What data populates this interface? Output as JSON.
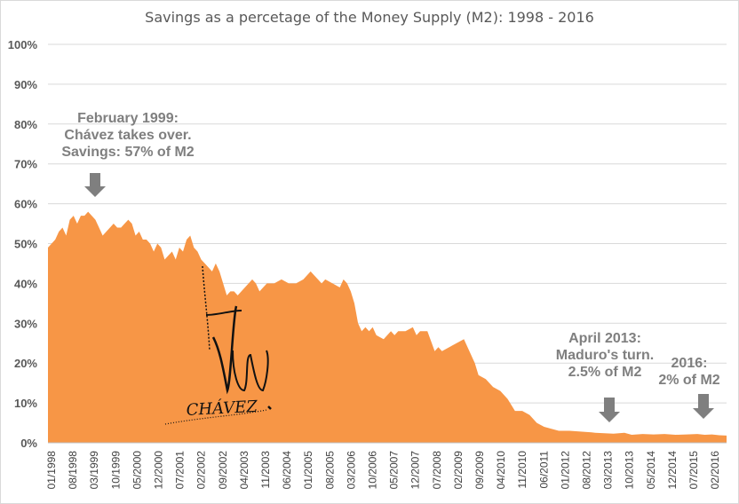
{
  "chart_data": {
    "type": "area",
    "title": "Savings as a percetage of the Money Supply (M2): 1998 - 2016",
    "xlabel": "",
    "ylabel": "",
    "ylim": [
      0,
      100
    ],
    "yticks": [
      "0%",
      "10%",
      "20%",
      "30%",
      "40%",
      "50%",
      "60%",
      "70%",
      "80%",
      "90%",
      "100%"
    ],
    "grid": true,
    "legend": "none",
    "fill_color": "#f79646",
    "grid_color": "#d9d9d9",
    "x_tick_labels": [
      "01/1998",
      "08/1998",
      "03/1999",
      "10/1999",
      "05/2000",
      "12/2000",
      "07/2001",
      "02/2002",
      "09/2002",
      "04/2003",
      "11/2003",
      "06/2004",
      "01/2005",
      "08/2005",
      "03/2006",
      "10/2006",
      "05/2007",
      "12/2007",
      "07/2008",
      "02/2009",
      "09/2009",
      "04/2010",
      "11/2010",
      "06/2011",
      "01/2012",
      "08/2012",
      "03/2013",
      "10/2013",
      "05/2014",
      "12/2014",
      "07/2015",
      "02/2016"
    ],
    "series": [
      {
        "name": "",
        "x": [
          1998.0,
          1998.1,
          1998.2,
          1998.3,
          1998.4,
          1998.5,
          1998.6,
          1998.7,
          1998.8,
          1998.9,
          1999.0,
          1999.1,
          1999.2,
          1999.3,
          1999.4,
          1999.5,
          1999.6,
          1999.7,
          1999.8,
          1999.9,
          2000.0,
          2000.1,
          2000.2,
          2000.3,
          2000.4,
          2000.5,
          2000.6,
          2000.7,
          2000.8,
          2000.9,
          2001.0,
          2001.1,
          2001.2,
          2001.3,
          2001.4,
          2001.5,
          2001.6,
          2001.7,
          2001.8,
          2001.9,
          2002.0,
          2002.1,
          2002.2,
          2002.3,
          2002.4,
          2002.5,
          2002.6,
          2002.7,
          2002.8,
          2002.9,
          2003.0,
          2003.1,
          2003.2,
          2003.3,
          2003.4,
          2003.5,
          2003.6,
          2003.7,
          2003.8,
          2003.9,
          2004.0,
          2004.2,
          2004.4,
          2004.6,
          2004.8,
          2005.0,
          2005.1,
          2005.2,
          2005.3,
          2005.4,
          2005.5,
          2005.6,
          2005.8,
          2006.0,
          2006.1,
          2006.2,
          2006.3,
          2006.4,
          2006.5,
          2006.6,
          2006.7,
          2006.8,
          2006.9,
          2007.0,
          2007.2,
          2007.4,
          2007.5,
          2007.6,
          2007.8,
          2008.0,
          2008.1,
          2008.2,
          2008.4,
          2008.6,
          2008.7,
          2008.8,
          2009.0,
          2009.2,
          2009.4,
          2009.5,
          2009.6,
          2009.7,
          2009.8,
          2010.0,
          2010.2,
          2010.4,
          2010.6,
          2010.8,
          2010.9,
          2011.0,
          2011.2,
          2011.4,
          2011.6,
          2011.8,
          2012.0,
          2012.3,
          2012.6,
          2012.9,
          2013.0,
          2013.25,
          2013.5,
          2013.8,
          2014.0,
          2014.3,
          2014.6,
          2014.9,
          2015.2,
          2015.5,
          2015.8,
          2016.0,
          2016.2,
          2016.4,
          2016.6
        ],
        "values": [
          49,
          50,
          51,
          53,
          54,
          52,
          56,
          57,
          55,
          57,
          57,
          58,
          57,
          56,
          54,
          52,
          53,
          54,
          55,
          54,
          54,
          55,
          56,
          55,
          52,
          53,
          51,
          51,
          50,
          48,
          50,
          49,
          46,
          47,
          48,
          46,
          49,
          48,
          51,
          52,
          49,
          48,
          46,
          45,
          44,
          43,
          45,
          43,
          40,
          37,
          38,
          38,
          37,
          38,
          39,
          40,
          41,
          40,
          38,
          39,
          40,
          40,
          41,
          40,
          40,
          41,
          42,
          43,
          42,
          41,
          40,
          41,
          40,
          39,
          41,
          40,
          38,
          35,
          30,
          28,
          29,
          28,
          29,
          27,
          26,
          28,
          27,
          28,
          28,
          29,
          27,
          28,
          28,
          23,
          24,
          23,
          24,
          25,
          26,
          24,
          22,
          20,
          17,
          16,
          14,
          13,
          11,
          8,
          8,
          8,
          7,
          5,
          4,
          3.5,
          3,
          3,
          2.8,
          2.6,
          2.5,
          2.4,
          2.3,
          2.5,
          2,
          2.2,
          2.1,
          2.2,
          2,
          2.1,
          2.2,
          2,
          2.1,
          1.9,
          1.8
        ]
      }
    ],
    "annotations": [
      {
        "lines": [
          "February 1999:",
          "Chávez takes over.",
          "Savings: 57% of M2"
        ]
      },
      {
        "lines": [
          "April  2013:",
          "Maduro's turn.",
          "2.5% of M2"
        ]
      },
      {
        "lines": [
          "2016:",
          "2% of M2"
        ]
      }
    ],
    "signature_text": "CHÁVEZ"
  }
}
